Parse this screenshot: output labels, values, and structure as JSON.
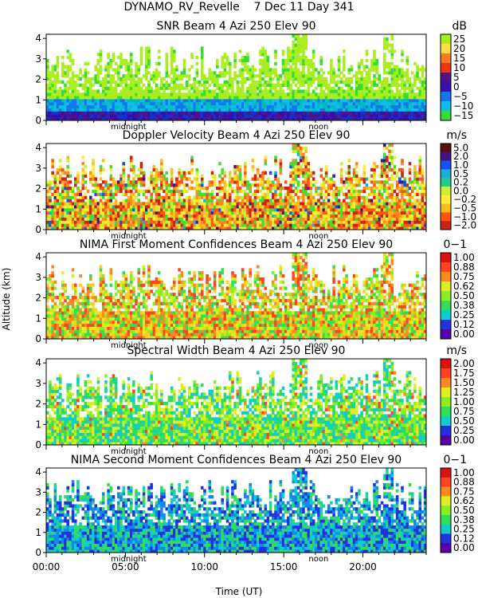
{
  "header": {
    "title": "DYNAMO_RV_Revelle    7 Dec 11 Day 341"
  },
  "axes": {
    "ylabel": "Altitude (km)",
    "xlabel": "Time (UT)",
    "y_ticks": [
      "0",
      "1",
      "2",
      "3",
      "4"
    ],
    "x_ticks": [
      "00:00",
      "05:00",
      "10:00",
      "15:00",
      "20:00"
    ],
    "x_markers": [
      "midnight",
      "noon"
    ]
  },
  "chart_data": [
    {
      "type": "heatmap",
      "title": "SNR Beam 4 Azi 250 Elev 90",
      "unit": "dB",
      "colorbar_ticks": [
        "25",
        "20",
        "15",
        "10",
        "5",
        "0",
        "−5",
        "−10",
        "−15"
      ],
      "colors": [
        "#33dd33",
        "#00bbbb",
        "#11bbee",
        "#1177ee",
        "#1133cc",
        "#3311aa",
        "#551188",
        "#aa1111",
        "#ee3311",
        "#ff7722",
        "#ffaa22",
        "#ffdd44",
        "#aaee22"
      ],
      "xlim": [
        0,
        24
      ],
      "ylim": [
        0,
        4.2
      ],
      "x_label": "Time (UT)",
      "y_label": "Altitude (km)"
    },
    {
      "type": "heatmap",
      "title": "Doppler Velocity Beam 4 Azi 250 Elev 90",
      "unit": "m/s",
      "colorbar_ticks": [
        "5.0",
        "2.0",
        "1.0",
        "0.5",
        "0.2",
        "0.0",
        "−0.2",
        "−0.5",
        "−1.0",
        "−2.0"
      ],
      "colors": [
        "#cc2211",
        "#ff5511",
        "#ff8822",
        "#ffbb22",
        "#ffee33",
        "#ccee33",
        "#44dd33",
        "#22cc88",
        "#22aadd",
        "#1155ee",
        "#2222aa",
        "#441188",
        "#551111"
      ],
      "xlim": [
        0,
        24
      ],
      "ylim": [
        0,
        4.2
      ]
    },
    {
      "type": "heatmap",
      "title": "NIMA First Moment Confidences Beam 4 Azi 250 Elev 90",
      "unit": "0−1",
      "colorbar_ticks": [
        "1.00",
        "0.88",
        "0.75",
        "0.62",
        "0.50",
        "0.38",
        "0.25",
        "0.12",
        "0.00"
      ],
      "colors": [
        "#5500aa",
        "#2233dd",
        "#1188ee",
        "#11cccc",
        "#33dd55",
        "#88ee22",
        "#ddee22",
        "#ffcc22",
        "#ff8822",
        "#ff4422",
        "#dd1111"
      ],
      "xlim": [
        0,
        24
      ],
      "ylim": [
        0,
        4.2
      ]
    },
    {
      "type": "heatmap",
      "title": "Spectral Width Beam 4 Azi 250 Elev 90",
      "unit": "m/s",
      "colorbar_ticks": [
        "2.00",
        "1.75",
        "1.50",
        "1.25",
        "1.00",
        "0.75",
        "0.50",
        "0.25",
        "0.00"
      ],
      "colors": [
        "#5500aa",
        "#2233dd",
        "#1188ee",
        "#11cccc",
        "#33dd55",
        "#88ee22",
        "#ddee22",
        "#ffcc22",
        "#ff8822",
        "#ff4422",
        "#dd1111"
      ],
      "xlim": [
        0,
        24
      ],
      "ylim": [
        0,
        4.2
      ]
    },
    {
      "type": "heatmap",
      "title": "NIMA Second Moment Confidences Beam 4 Azi 250 Elev 90",
      "unit": "0−1",
      "colorbar_ticks": [
        "1.00",
        "0.88",
        "0.75",
        "0.62",
        "0.50",
        "0.38",
        "0.25",
        "0.12",
        "0.00"
      ],
      "colors": [
        "#5500aa",
        "#2233dd",
        "#1188ee",
        "#11cccc",
        "#33dd55",
        "#88ee22",
        "#ddee22",
        "#ffcc22",
        "#ff8822",
        "#ff4422",
        "#dd1111"
      ],
      "xlim": [
        0,
        24
      ],
      "ylim": [
        0,
        4.2
      ]
    }
  ]
}
